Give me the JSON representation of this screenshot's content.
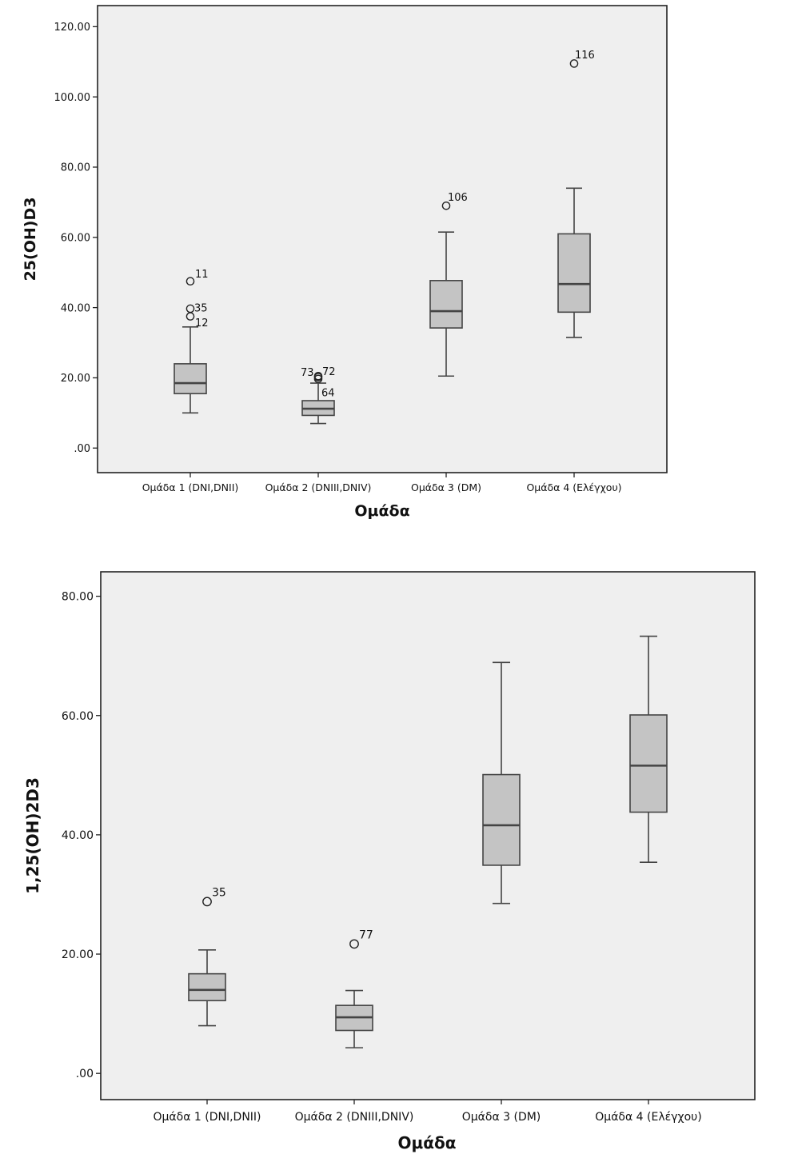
{
  "chart_data": [
    {
      "type": "boxplot",
      "xlabel": "Ομάδα",
      "ylabel": "25(OH)D3",
      "ylim": [
        -7,
        126
      ],
      "yticks": [
        {
          "value": 0,
          "label": ".00"
        },
        {
          "value": 20,
          "label": "20.00"
        },
        {
          "value": 40,
          "label": "40.00"
        },
        {
          "value": 60,
          "label": "60.00"
        },
        {
          "value": 80,
          "label": "80.00"
        },
        {
          "value": 100,
          "label": "100.00"
        },
        {
          "value": 120,
          "label": "120.00"
        }
      ],
      "grid": false,
      "box_color": "#c4c4c4",
      "plot_background": "#efefef",
      "categories": [
        "Ομάδα 1 (DNI,DNII)",
        "Ομάδα 2 (DNIII,DNIV)",
        "Ομάδα 3 (DM)",
        "Ομάδα 4 (Ελέγχου)"
      ],
      "boxes": [
        {
          "whisker_low": 10,
          "q1": 15.5,
          "median": 18.5,
          "q3": 24,
          "whisker_high": 34.5,
          "outliers": [
            {
              "value": 47.5,
              "label": "11"
            },
            {
              "value": 39.7,
              "label": "35"
            },
            {
              "value": 37.5,
              "label": "12"
            }
          ]
        },
        {
          "whisker_low": 7,
          "q1": 9.3,
          "median": 11.2,
          "q3": 13.5,
          "whisker_high": 18.5,
          "outliers": [
            {
              "value": 20.5,
              "label": "72"
            },
            {
              "value": 20.2,
              "label": "73"
            },
            {
              "value": 19.7,
              "label": "64"
            }
          ]
        },
        {
          "whisker_low": 20.5,
          "q1": 34.2,
          "median": 39,
          "q3": 47.7,
          "whisker_high": 61.5,
          "outliers": [
            {
              "value": 69,
              "label": "106"
            }
          ]
        },
        {
          "whisker_low": 31.5,
          "q1": 38.7,
          "median": 46.7,
          "q3": 61,
          "whisker_high": 74,
          "outliers": [
            {
              "value": 109.5,
              "label": "116"
            }
          ]
        }
      ]
    },
    {
      "type": "boxplot",
      "xlabel": "Ομάδα",
      "ylabel": "1,25(OH)2D3",
      "ylim": [
        -4.4,
        84.1
      ],
      "yticks": [
        {
          "value": 0,
          "label": ".00"
        },
        {
          "value": 20,
          "label": "20.00"
        },
        {
          "value": 40,
          "label": "40.00"
        },
        {
          "value": 60,
          "label": "60.00"
        },
        {
          "value": 80,
          "label": "80.00"
        }
      ],
      "grid": false,
      "box_color": "#c4c4c4",
      "plot_background": "#efefef",
      "categories": [
        "Ομάδα 1 (DNI,DNII)",
        "Ομάδα 2 (DNIII,DNIV)",
        "Ομάδα 3 (DM)",
        "Ομάδα 4 (Ελέγχου)"
      ],
      "boxes": [
        {
          "whisker_low": 8,
          "q1": 12.2,
          "median": 14,
          "q3": 16.7,
          "whisker_high": 20.7,
          "outliers": [
            {
              "value": 28.8,
              "label": "35"
            }
          ]
        },
        {
          "whisker_low": 4.3,
          "q1": 7.2,
          "median": 9.4,
          "q3": 11.4,
          "whisker_high": 13.9,
          "outliers": [
            {
              "value": 21.7,
              "label": "77"
            }
          ]
        },
        {
          "whisker_low": 28.5,
          "q1": 34.9,
          "median": 41.6,
          "q3": 50.1,
          "whisker_high": 68.9,
          "outliers": []
        },
        {
          "whisker_low": 35.4,
          "q1": 43.8,
          "median": 51.6,
          "q3": 60.1,
          "whisker_high": 73.3,
          "outliers": []
        }
      ]
    }
  ]
}
